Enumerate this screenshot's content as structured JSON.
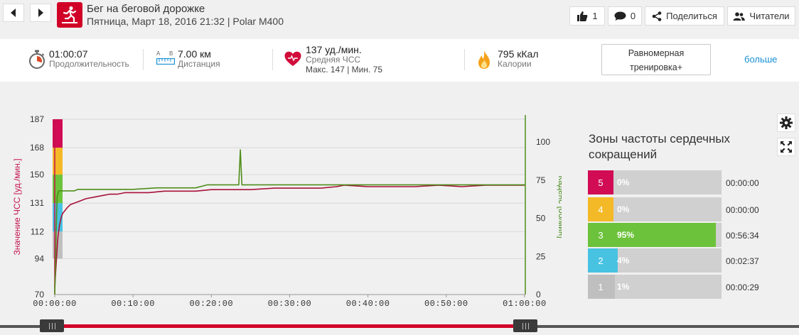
{
  "header": {
    "title": "Бег на беговой дорожке",
    "subtitle": "Пятница, Март 18, 2016 21:32 | Polar M400",
    "likes_count": "1",
    "comments_count": "0",
    "share_label": "Поделиться",
    "followers_label": "Читатели",
    "icons": {
      "prev": "chevron-left-icon",
      "next": "chevron-right-icon",
      "sport": "treadmill-running-icon",
      "like": "thumbs-up-icon",
      "comment": "comment-icon",
      "share": "share-icon",
      "followers": "followers-icon"
    },
    "sport_color": "#d10027"
  },
  "summary": {
    "duration": {
      "value": "01:00:07",
      "label": "Продолжительность",
      "icon": "stopwatch-icon"
    },
    "distance": {
      "value": "7.00 км",
      "label": "Дистанция",
      "icon": "ruler-icon",
      "a": "A",
      "b": "B"
    },
    "heart_rate": {
      "value": "137 уд./мин.",
      "label": "Средняя ЧСС",
      "max_min": "Макс. 147  |  Мин. 75",
      "icon": "heart-icon"
    },
    "calories": {
      "value": "795 кКал",
      "label": "Калории",
      "icon": "flame-icon"
    },
    "training_benefit_line1": "Равномерная",
    "training_benefit_line2": "тренировка+",
    "more_label": "больше"
  },
  "tools": {
    "settings_icon": "gear-icon",
    "fullscreen_icon": "expand-icon"
  },
  "chart_data": {
    "type": "line",
    "x_ticks": [
      "00:00:00",
      "00:10:00",
      "00:20:00",
      "00:30:00",
      "00:40:00",
      "00:50:00",
      "01:00:00"
    ],
    "x_unit": "minutes",
    "x_range": [
      0,
      60.1
    ],
    "ylabel_left": "Значение ЧСС [уд./мин.]",
    "ylabel_right": "Каденс [об/мин]",
    "y_left_ticks": [
      70,
      94,
      112,
      131,
      150,
      168,
      187
    ],
    "y_right_ticks": [
      0,
      25,
      50,
      75,
      100
    ],
    "y_right_range": [
      0,
      115
    ],
    "grid": true,
    "zone_band_colors": [
      "#d10c55",
      "#f4b927",
      "#6cc23b",
      "#48c2e1",
      "#bfbfbf"
    ],
    "series": [
      {
        "name": "Значение ЧСС [уд./мин.]",
        "axis": "left",
        "color": "#a8113a",
        "x": [
          0,
          0.2,
          0.4,
          0.6,
          0.8,
          1.0,
          1.3,
          1.6,
          2.0,
          2.5,
          3.0,
          3.5,
          4.0,
          5.0,
          6.0,
          7.0,
          8.0,
          9.0,
          10.0,
          12.0,
          14.0,
          16.0,
          18.0,
          20.0,
          23.0,
          25.0,
          28.0,
          31.0,
          34.0,
          36.0,
          37.0,
          40.0,
          43.0,
          46.0,
          49.0,
          52.0,
          55.0,
          58.0,
          60.0
        ],
        "y": [
          75,
          92,
          108,
          116,
          121,
          124,
          126,
          128,
          130,
          131,
          132,
          133,
          134,
          135,
          136,
          137,
          137,
          138,
          138,
          138,
          139,
          139,
          139,
          140,
          140,
          140,
          141,
          141,
          141,
          142,
          143,
          142,
          142,
          142,
          143,
          142,
          143,
          143,
          143
        ]
      },
      {
        "name": "Каденс [об/мин]",
        "axis": "right",
        "color": "#4e8d1a",
        "x": [
          0,
          0.1,
          0.2,
          0.3,
          0.5,
          0.8,
          1.0,
          2.5,
          3.0,
          10.0,
          13.0,
          18.0,
          19.5,
          20.0,
          23.5,
          23.7,
          23.9,
          24.1,
          24.3,
          30.0,
          40.0,
          50.0,
          60.0,
          60.1
        ],
        "y": [
          0,
          20,
          45,
          64,
          68,
          68,
          68,
          68,
          69,
          69,
          70,
          70,
          72,
          72,
          72,
          95,
          72,
          72,
          72,
          72,
          72,
          72,
          72,
          72
        ]
      }
    ]
  },
  "zones": {
    "title": "Зоны частоты сердечных сокращений",
    "items": [
      {
        "num": "5",
        "pct_label": "0%",
        "pct": 0,
        "time": "00:00:00",
        "color": "#d10c55"
      },
      {
        "num": "4",
        "pct_label": "0%",
        "pct": 0,
        "time": "00:00:00",
        "color": "#f4b927"
      },
      {
        "num": "3",
        "pct_label": "95%",
        "pct": 95,
        "time": "00:56:34",
        "color": "#6cc23b"
      },
      {
        "num": "2",
        "pct_label": "4%",
        "pct": 4,
        "time": "00:02:37",
        "color": "#48c2e1"
      },
      {
        "num": "1",
        "pct_label": "1%",
        "pct": 1,
        "time": "00:00:29",
        "color": "#bfbfbf"
      }
    ]
  },
  "slider": {
    "range_color": "#d10027",
    "start_fraction": 0,
    "end_fraction": 1
  }
}
